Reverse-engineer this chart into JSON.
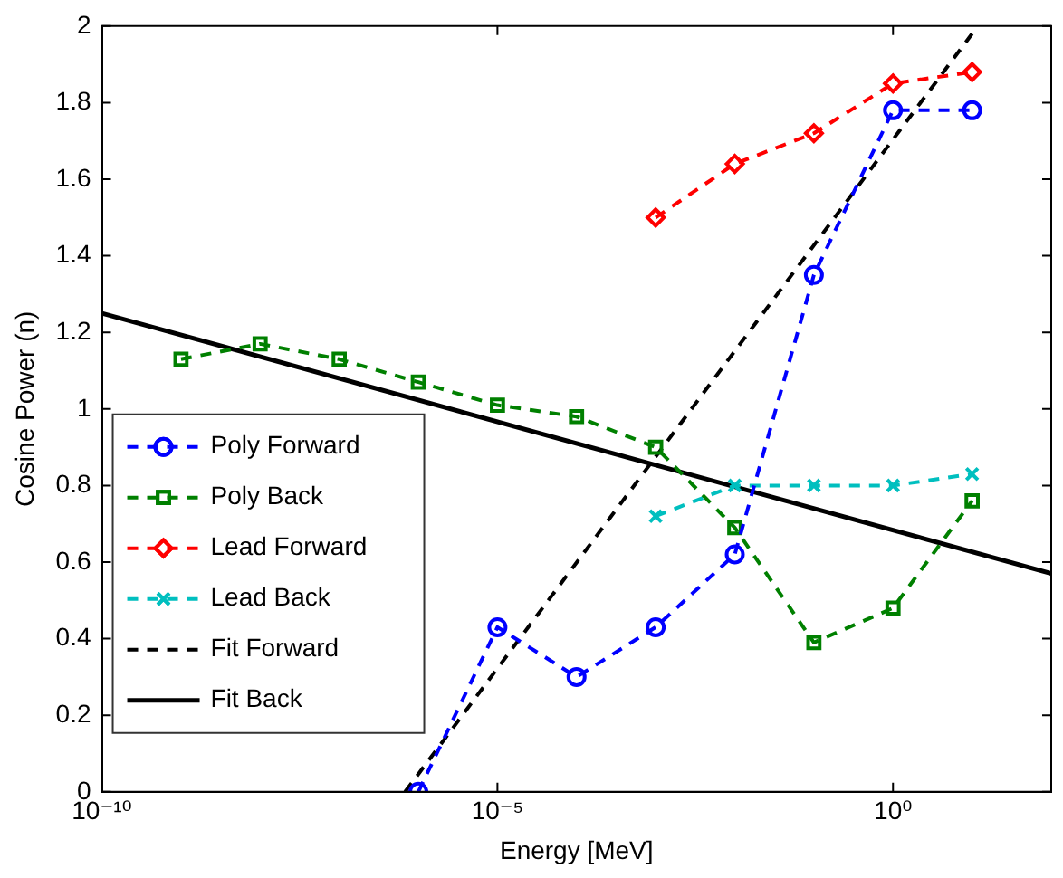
{
  "chart_data": {
    "type": "line",
    "xlabel": "Energy [MeV]",
    "ylabel": "Cosine Power (n)",
    "log": "x",
    "xlim": [
      1e-10,
      100
    ],
    "xticks": [
      {
        "value": 1e-10,
        "label": "10⁻¹⁰"
      },
      {
        "value": 1e-05,
        "label": "10⁻⁵"
      },
      {
        "value": 1,
        "label": "10⁰"
      }
    ],
    "ylim": [
      0,
      2
    ],
    "yticks": [
      0,
      0.2,
      0.4,
      0.6,
      0.8,
      1,
      1.2,
      1.4,
      1.6,
      1.8,
      2
    ],
    "grid": false,
    "legend": "left",
    "series": [
      {
        "name": "Poly Forward",
        "color": "#0000ff",
        "marker": "circle",
        "line_style": "dashed",
        "x": [
          1e-06,
          1e-05,
          0.0001,
          0.001,
          0.01,
          0.1,
          1,
          10
        ],
        "values": [
          0,
          0.43,
          0.3,
          0.43,
          0.62,
          1.35,
          1.78,
          1.78
        ]
      },
      {
        "name": "Poly Back",
        "color": "#008000",
        "marker": "square",
        "line_style": "dashed",
        "x": [
          1e-09,
          1e-08,
          1e-07,
          1e-06,
          1e-05,
          0.0001,
          0.001,
          0.01,
          0.1,
          1,
          10
        ],
        "values": [
          1.13,
          1.17,
          1.13,
          1.07,
          1.01,
          0.98,
          0.9,
          0.69,
          0.39,
          0.48,
          0.76
        ]
      },
      {
        "name": "Lead Forward",
        "color": "#ff0000",
        "marker": "diamond",
        "line_style": "dashed",
        "x": [
          0.001,
          0.01,
          0.1,
          1,
          10
        ],
        "values": [
          1.5,
          1.64,
          1.72,
          1.85,
          1.88
        ]
      },
      {
        "name": "Lead Back",
        "color": "#00bfbf",
        "marker": "cross",
        "line_style": "dashed",
        "x": [
          0.001,
          0.01,
          0.1,
          1,
          10
        ],
        "values": [
          0.72,
          0.8,
          0.8,
          0.8,
          0.83
        ]
      },
      {
        "name": "Fit Forward",
        "color": "#000000",
        "marker": "none",
        "line_style": "dashed",
        "x": [
          6.8e-07,
          10
        ],
        "values": [
          0,
          1.98
        ]
      },
      {
        "name": "Fit Back",
        "color": "#000000",
        "marker": "none",
        "line_style": "solid",
        "x": [
          1e-10,
          100
        ],
        "values": [
          1.25,
          0.57
        ]
      }
    ]
  }
}
